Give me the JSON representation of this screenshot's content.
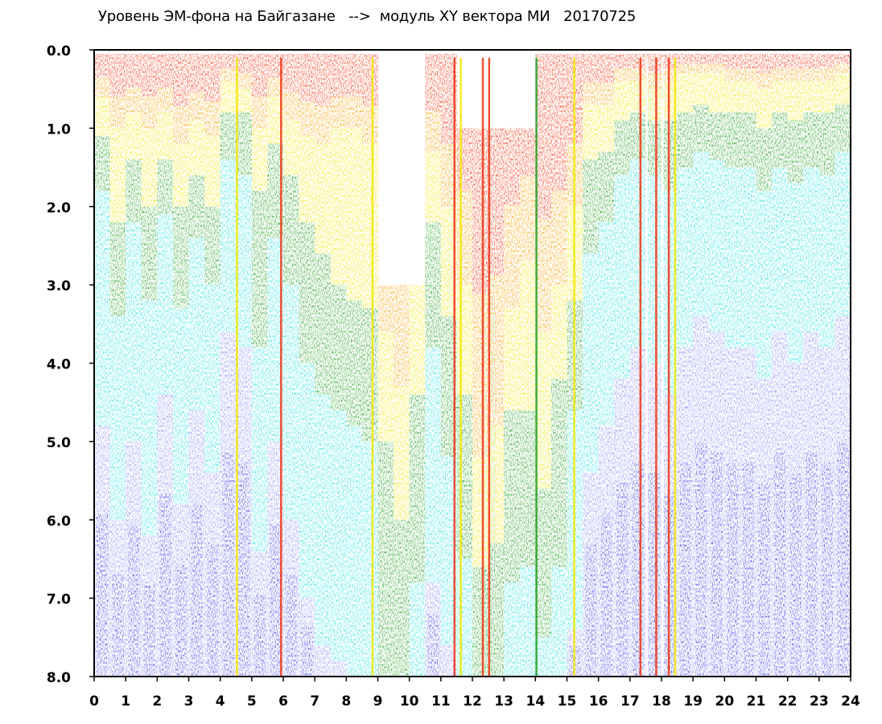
{
  "chart_data": {
    "type": "heatmap",
    "title": "Уровень ЭМ-фона на Байгазане   -->  модуль XY вектора МИ   20170725",
    "xlabel": "",
    "ylabel": "",
    "xlim": [
      0,
      24
    ],
    "ylim": [
      0,
      8
    ],
    "y_axis_inverted": true,
    "x_ticks": [
      "0",
      "1",
      "2",
      "3",
      "4",
      "5",
      "6",
      "7",
      "8",
      "9",
      "10",
      "11",
      "12",
      "13",
      "14",
      "15",
      "16",
      "17",
      "18",
      "19",
      "20",
      "21",
      "22",
      "23",
      "24"
    ],
    "y_ticks": [
      "0.0",
      "1.0",
      "2.0",
      "3.0",
      "4.0",
      "5.0",
      "6.0",
      "7.0",
      "8.0"
    ],
    "grid": false,
    "color_scale": {
      "levels": [
        "blue",
        "light-blue",
        "cyan",
        "green",
        "yellow",
        "orange",
        "red"
      ],
      "colors": [
        "#3c3ce6",
        "#8a8af0",
        "#2de0e0",
        "#1f9e1f",
        "#f2e600",
        "#f5a000",
        "#f03010"
      ]
    },
    "columns_hours": [
      0,
      0.5,
      1,
      1.5,
      2,
      2.5,
      3,
      3.5,
      4,
      4.5,
      5,
      5.5,
      6,
      6.5,
      7,
      7.5,
      8,
      8.5,
      9,
      9.5,
      10,
      10.5,
      11,
      11.5,
      12,
      12.5,
      13,
      13.5,
      14,
      14.5,
      15,
      15.5,
      16,
      16.5,
      17,
      17.5,
      18,
      18.5,
      19,
      19.5,
      20,
      20.5,
      21,
      21.5,
      22,
      22.5,
      23,
      23.5
    ],
    "red_to_yellow_boundary": [
      0.6,
      1.0,
      0.8,
      1.0,
      0.8,
      1.2,
      0.9,
      1.1,
      0.4,
      0.5,
      1.0,
      0.6,
      0.9,
      1.1,
      1.2,
      1.0,
      1.0,
      1.2,
      3.6,
      4.3,
      2.2,
      1.3,
      2.0,
      3.0,
      5.2,
      4.8,
      3.3,
      2.7,
      3.6,
      3.0,
      2.0,
      0.7,
      0.7,
      0.4,
      0.4,
      0.5,
      0.4,
      0.3,
      0.3,
      0.3,
      0.4,
      0.4,
      0.5,
      0.4,
      0.4,
      0.4,
      0.4,
      0.3
    ],
    "yellow_to_green_boundary": [
      1.1,
      2.2,
      1.4,
      2.0,
      1.4,
      2.0,
      1.6,
      2.0,
      0.8,
      0.8,
      1.8,
      1.2,
      1.6,
      2.2,
      2.6,
      3.0,
      3.2,
      3.3,
      5.0,
      6.0,
      4.4,
      2.2,
      3.4,
      4.4,
      6.6,
      6.3,
      4.6,
      4.6,
      5.6,
      4.2,
      3.2,
      1.4,
      1.3,
      0.9,
      0.8,
      0.9,
      0.9,
      0.8,
      0.7,
      0.8,
      0.8,
      0.8,
      1.0,
      0.8,
      0.9,
      0.8,
      0.8,
      0.7
    ],
    "green_to_cyan_boundary": [
      1.8,
      3.4,
      2.2,
      3.2,
      2.1,
      3.3,
      2.4,
      3.0,
      1.4,
      1.6,
      3.8,
      2.4,
      3.0,
      4.0,
      4.4,
      4.6,
      4.8,
      5.0,
      8.0,
      8.0,
      6.8,
      3.8,
      5.2,
      6.5,
      8.0,
      8.0,
      6.8,
      6.6,
      7.5,
      6.6,
      4.6,
      2.6,
      2.2,
      1.6,
      1.4,
      1.6,
      1.8,
      1.5,
      1.3,
      1.4,
      1.5,
      1.5,
      1.8,
      1.5,
      1.7,
      1.5,
      1.6,
      1.3
    ],
    "cyan_to_blue_boundary": [
      4.8,
      6.0,
      5.0,
      6.2,
      4.4,
      5.8,
      4.6,
      5.4,
      3.6,
      3.8,
      6.4,
      5.0,
      6.0,
      7.0,
      7.6,
      7.8,
      8.0,
      8.0,
      8.0,
      8.0,
      8.0,
      6.8,
      7.6,
      8.0,
      8.0,
      8.0,
      8.0,
      8.0,
      8.0,
      8.0,
      7.4,
      5.4,
      4.8,
      4.2,
      3.8,
      4.0,
      4.4,
      3.8,
      3.4,
      3.6,
      3.8,
      3.8,
      4.2,
      3.6,
      4.0,
      3.6,
      3.8,
      3.4
    ],
    "empty_top_band": [
      {
        "from_hour": 9.0,
        "to_hour": 10.2,
        "empty_to": 3.0
      },
      {
        "from_hour": 11.7,
        "to_hour": 13.7,
        "empty_to": 1.0
      }
    ],
    "vertical_stripes_hours": [
      4.5,
      5.9,
      8.8,
      11.4,
      11.6,
      12.3,
      12.5,
      14.0,
      15.2,
      17.3,
      17.5,
      17.8,
      18.0,
      18.2,
      18.4
    ]
  }
}
